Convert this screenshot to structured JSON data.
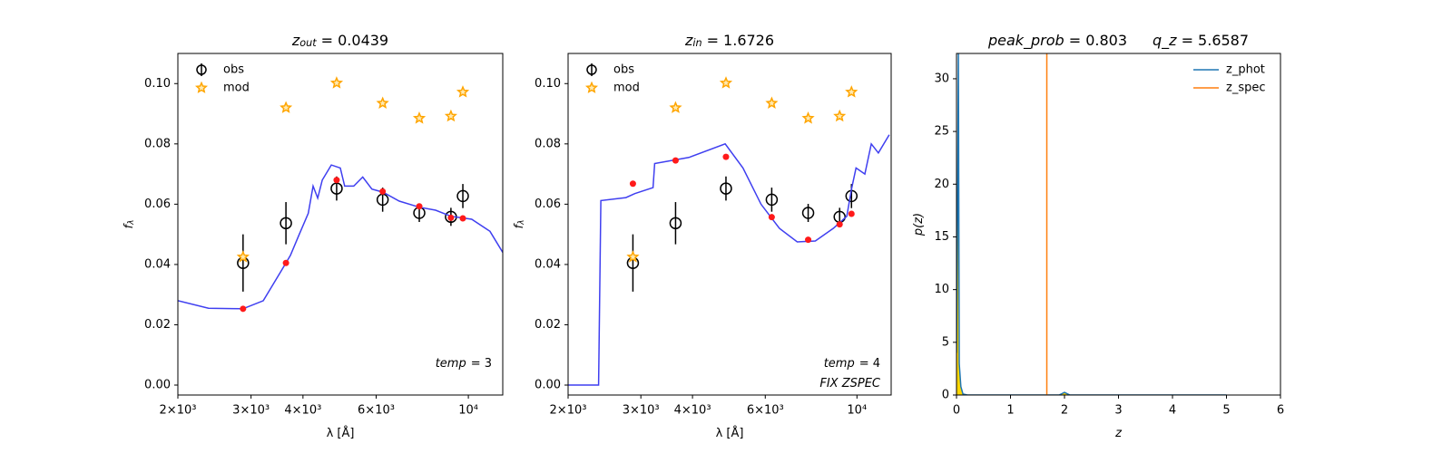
{
  "chart_data": [
    {
      "type": "line",
      "title": [
        {
          "text": "z",
          "style": "italic"
        },
        {
          "text": "out",
          "style": "sub"
        },
        {
          "text": "= 0.0439"
        }
      ],
      "xlabel": [
        {
          "text": "λ [Å]"
        }
      ],
      "ylabel": [
        {
          "text": "f",
          "style": "italic"
        },
        {
          "text": "λ",
          "style": "sub"
        }
      ],
      "xscale": "log",
      "xlim": [
        2000,
        12100
      ],
      "ylim": [
        -0.0033,
        0.11
      ],
      "xticks": [
        {
          "value": 2000,
          "label": "2×10³"
        },
        {
          "value": 3000,
          "label": "3×10³"
        },
        {
          "value": 4000,
          "label": "4×10³"
        },
        {
          "value": 6000,
          "label": "6×10³"
        },
        {
          "value": 10000,
          "label": "10⁴"
        }
      ],
      "yticks": [
        {
          "value": 0,
          "label": "0.00"
        },
        0.02,
        0.04,
        0.06,
        0.08,
        {
          "value": 0.1,
          "label": "0.10"
        }
      ],
      "legend": "upper left",
      "annotations": [
        [
          {
            "text": "temp",
            "style": "italic"
          },
          {
            "text": "= 3"
          }
        ]
      ],
      "series": [
        {
          "name": "obs",
          "style": "errorbar",
          "color": "#000000",
          "x": [
            2870,
            3640,
            4820,
            6220,
            7620,
            9080,
            9700
          ],
          "values": [
            0.0405,
            0.0537,
            0.0652,
            0.0615,
            0.0571,
            0.0558,
            0.0627
          ],
          "errors": [
            0.0095,
            0.007,
            0.004,
            0.004,
            0.003,
            0.003,
            0.004
          ]
        },
        {
          "name": "mod",
          "style": "star",
          "color": "#ffa500",
          "x": [
            2870,
            3640,
            4820,
            6220,
            7620,
            9080,
            9700
          ],
          "values": [
            0.0425,
            0.092,
            0.1002,
            0.0935,
            0.0885,
            0.0892,
            0.0972
          ]
        },
        {
          "style": "line",
          "color": "#3f3ff0",
          "x": [
            2000,
            2370,
            2870,
            3210,
            3550,
            3730,
            3920,
            4120,
            4230,
            4340,
            4450,
            4680,
            4920,
            5040,
            5300,
            5570,
            5860,
            6230,
            6820,
            7620,
            8340,
            9080,
            10190,
            11270,
            12100
          ],
          "values": [
            0.028,
            0.0255,
            0.0253,
            0.028,
            0.038,
            0.043,
            0.05,
            0.057,
            0.066,
            0.062,
            0.068,
            0.073,
            0.072,
            0.066,
            0.066,
            0.069,
            0.065,
            0.064,
            0.061,
            0.059,
            0.058,
            0.056,
            0.055,
            0.051,
            0.044
          ]
        },
        {
          "style": "dot",
          "color": "#ff1a1a",
          "x": [
            2870,
            3640,
            4820,
            6220,
            7620,
            9080,
            9700
          ],
          "values": [
            0.0253,
            0.0405,
            0.068,
            0.0642,
            0.0593,
            0.0555,
            0.0553
          ]
        }
      ]
    },
    {
      "type": "line",
      "title": [
        {
          "text": "z",
          "style": "italic"
        },
        {
          "text": "in",
          "style": "sub"
        },
        {
          "text": "= 1.6726"
        }
      ],
      "xlabel": [
        {
          "text": "λ [Å]"
        }
      ],
      "ylabel": [
        {
          "text": "f",
          "style": "italic"
        },
        {
          "text": "λ",
          "style": "sub"
        }
      ],
      "xscale": "log",
      "xlim": [
        2000,
        12100
      ],
      "ylim": [
        -0.0033,
        0.11
      ],
      "xticks": [
        {
          "value": 2000,
          "label": "2×10³"
        },
        {
          "value": 3000,
          "label": "3×10³"
        },
        {
          "value": 4000,
          "label": "4×10³"
        },
        {
          "value": 6000,
          "label": "6×10³"
        },
        {
          "value": 10000,
          "label": "10⁴"
        }
      ],
      "yticks": [
        {
          "value": 0,
          "label": "0.00"
        },
        0.02,
        0.04,
        0.06,
        0.08,
        {
          "value": 0.1,
          "label": "0.10"
        }
      ],
      "legend": "upper left",
      "annotations": [
        [
          {
            "text": "temp",
            "style": "italic"
          },
          {
            "text": "= 4"
          }
        ],
        [
          {
            "text": "FIX ZSPEC",
            "style": "italic"
          }
        ]
      ],
      "series": [
        {
          "name": "obs",
          "style": "errorbar",
          "color": "#000000",
          "x": [
            2870,
            3640,
            4820,
            6220,
            7620,
            9080,
            9700
          ],
          "values": [
            0.0405,
            0.0537,
            0.0652,
            0.0615,
            0.0571,
            0.0558,
            0.0627
          ],
          "errors": [
            0.0095,
            0.007,
            0.004,
            0.004,
            0.003,
            0.003,
            0.004
          ]
        },
        {
          "name": "mod",
          "style": "star",
          "color": "#ffa500",
          "x": [
            2870,
            3640,
            4820,
            6220,
            7620,
            9080,
            9700
          ],
          "values": [
            0.0425,
            0.092,
            0.1002,
            0.0935,
            0.0885,
            0.0892,
            0.0972
          ]
        },
        {
          "style": "line",
          "color": "#3f3ff0",
          "x": [
            2000,
            2370,
            2400,
            2760,
            2900,
            3210,
            3240,
            3920,
            4800,
            5300,
            5860,
            6490,
            7170,
            7930,
            8770,
            9450,
            9700,
            9950,
            10450,
            10830,
            11270,
            11970
          ],
          "values": [
            0,
            0,
            0.0612,
            0.0622,
            0.0635,
            0.0655,
            0.0735,
            0.0755,
            0.08,
            0.072,
            0.06,
            0.052,
            0.0475,
            0.0478,
            0.052,
            0.056,
            0.065,
            0.072,
            0.07,
            0.08,
            0.077,
            0.083
          ]
        },
        {
          "style": "dot",
          "color": "#ff1a1a",
          "x": [
            2870,
            3640,
            4820,
            6220,
            7620,
            9080,
            9700
          ],
          "values": [
            0.0668,
            0.0745,
            0.0757,
            0.0557,
            0.0482,
            0.0533,
            0.0568
          ]
        }
      ]
    },
    {
      "type": "line",
      "title": [
        {
          "text": "peak_prob",
          "style": "italic"
        },
        {
          "text": "= 0.803"
        },
        {
          "text": "q_z",
          "style": "italic",
          "gap": true
        },
        {
          "text": "= 5.6587"
        }
      ],
      "xlabel": [
        {
          "text": "z",
          "style": "italic"
        }
      ],
      "ylabel": [
        {
          "text": "p(z)",
          "style": "italic"
        }
      ],
      "xscale": "linear",
      "xlim": [
        0,
        6
      ],
      "ylim": [
        0,
        32.4
      ],
      "xticks": [
        0,
        1,
        2,
        3,
        4,
        5,
        6
      ],
      "yticks": [
        0,
        5,
        10,
        15,
        20,
        25,
        30
      ],
      "legend": "upper right",
      "series": [
        {
          "name": "z_phot",
          "style": "line",
          "color": "#1f77b4",
          "fill": "#ffd700",
          "x": [
            0,
            0.02,
            0.035,
            0.05,
            0.08,
            0.12,
            0.2,
            1,
            1.9,
            2.0,
            2.1,
            3,
            4,
            5
          ],
          "values": [
            4,
            18,
            32.4,
            3,
            0.8,
            0.1,
            0,
            0,
            0,
            0.25,
            0,
            0,
            0,
            0
          ]
        }
      ],
      "vlines": [
        {
          "name": "z_spec",
          "color": "#ff7f0e",
          "x": 1.6726
        }
      ]
    }
  ]
}
